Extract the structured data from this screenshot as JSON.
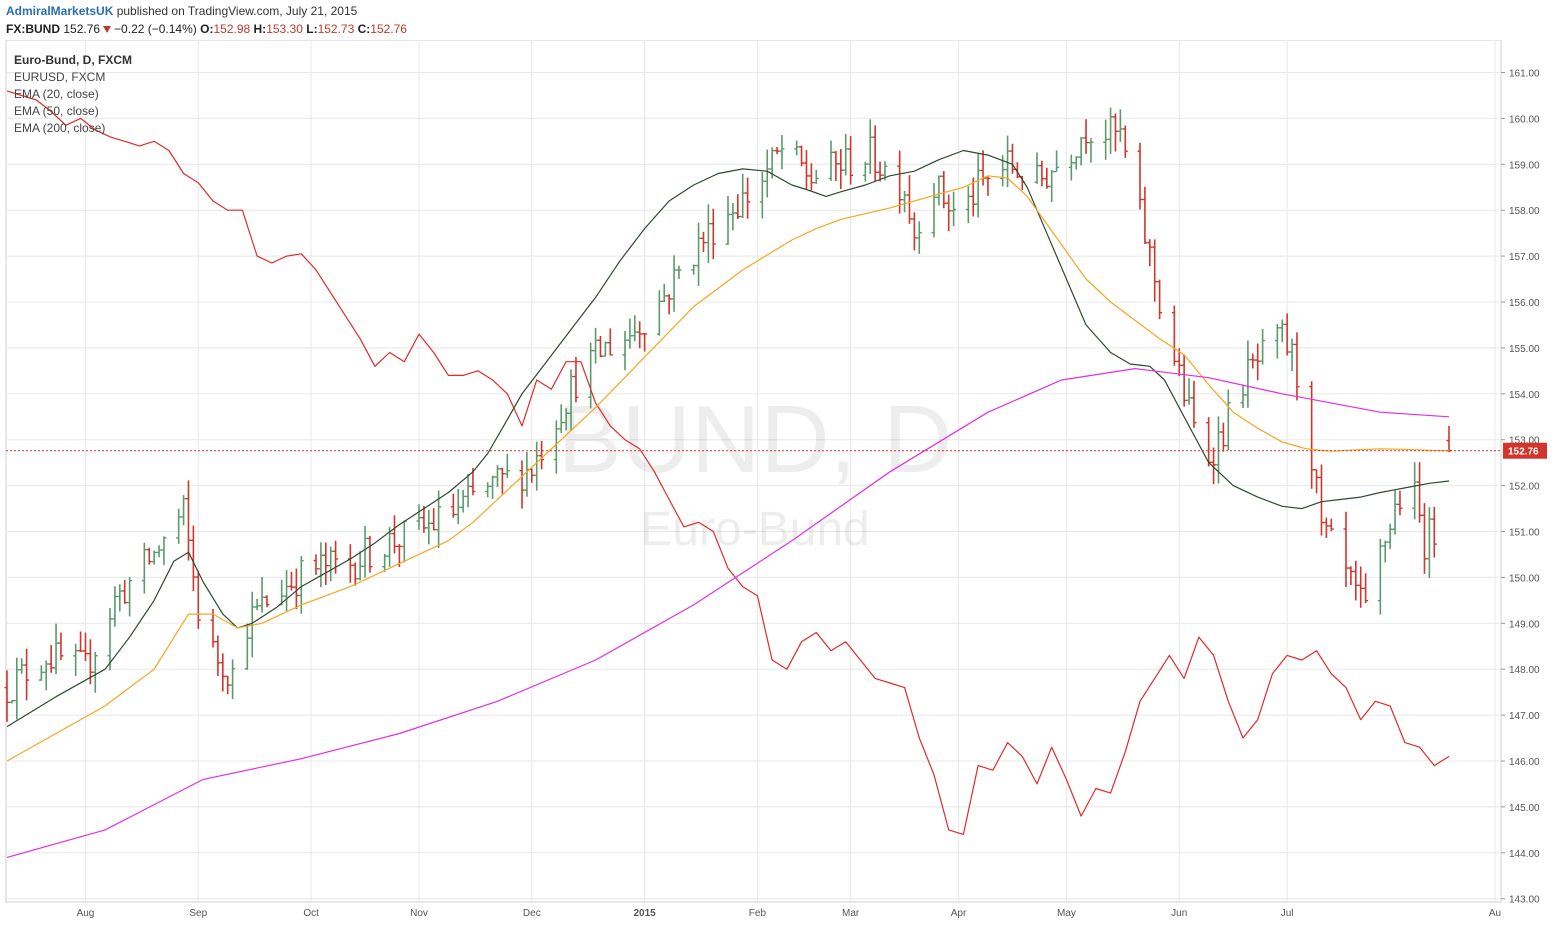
{
  "header": {
    "author": "AdmiralMarketsUK",
    "published": " published on TradingView.com, July 21, 2015",
    "symbol": "FX:BUND",
    "last": "152.76",
    "change": "−0.22 (−0.14%)",
    "o_label": "O:",
    "o_val": "152.98",
    "h_label": "H:",
    "h_val": "153.30",
    "l_label": "L:",
    "l_val": "152.73",
    "c_label": "C:",
    "c_val": "152.76"
  },
  "legend": {
    "main": "Euro-Bund, D, FXCM",
    "items": [
      "EURUSD, FXCM",
      "EMA (20, close)",
      "EMA (50, close)",
      "EMA (200, close)"
    ]
  },
  "watermark": {
    "line1": "BUND, D",
    "line2": "Euro-Bund"
  },
  "colors": {
    "up": "#5a9a6b",
    "down": "#d2352b",
    "eurusd": "#e02b2b",
    "ema20": "#2d4a2d",
    "ema50": "#f5a623",
    "ema200": "#e22ee0",
    "price_tag": "#d2352b",
    "grid": "#e8e8e8"
  },
  "chart_data": {
    "type": "line",
    "instrument": "Euro-Bund, D, FXCM",
    "y_axis": {
      "side": "right",
      "ticks": [
        143,
        144,
        145,
        146,
        147,
        148,
        149,
        150,
        151,
        152,
        153,
        154,
        155,
        156,
        157,
        158,
        159,
        160,
        161
      ],
      "ylim": [
        142.8,
        161.6
      ]
    },
    "x_axis": {
      "labels": [
        "Aug",
        "Sep",
        "Oct",
        "Nov",
        "Dec",
        "2015",
        "Feb",
        "Mar",
        "Apr",
        "May",
        "Jun",
        "Jul",
        "Au"
      ]
    },
    "last_price": 152.76,
    "series": [
      {
        "name": "EURUSD, FXCM",
        "values": [
          [
            0,
            160.6
          ],
          [
            3,
            160.5
          ],
          [
            6,
            160.4
          ],
          [
            9,
            160.15
          ],
          [
            12,
            159.85
          ],
          [
            15,
            160.0
          ],
          [
            18,
            159.75
          ],
          [
            21,
            159.6
          ],
          [
            24,
            159.5
          ],
          [
            27,
            159.4
          ],
          [
            30,
            159.5
          ],
          [
            33,
            159.3
          ],
          [
            36,
            158.8
          ],
          [
            39,
            158.6
          ],
          [
            42,
            158.2
          ],
          [
            45,
            158.0
          ],
          [
            48,
            158.0
          ],
          [
            51,
            157.0
          ],
          [
            54,
            156.85
          ],
          [
            57,
            157.0
          ],
          [
            60,
            157.05
          ],
          [
            63,
            156.7
          ],
          [
            66,
            156.2
          ],
          [
            69,
            155.7
          ],
          [
            72,
            155.2
          ],
          [
            75,
            154.6
          ],
          [
            78,
            154.9
          ],
          [
            81,
            154.7
          ],
          [
            84,
            155.3
          ],
          [
            87,
            154.9
          ],
          [
            90,
            154.4
          ],
          [
            93,
            154.4
          ],
          [
            96,
            154.5
          ],
          [
            99,
            154.3
          ],
          [
            102,
            154.0
          ],
          [
            105,
            153.3
          ],
          [
            108,
            154.3
          ],
          [
            111,
            154.1
          ],
          [
            114,
            154.7
          ],
          [
            117,
            154.7
          ],
          [
            120,
            153.8
          ],
          [
            123,
            153.3
          ],
          [
            126,
            153.0
          ],
          [
            129,
            152.8
          ],
          [
            132,
            152.3
          ],
          [
            135,
            151.7
          ],
          [
            138,
            151.1
          ],
          [
            141,
            151.2
          ],
          [
            144,
            151.0
          ],
          [
            147,
            150.2
          ],
          [
            150,
            149.8
          ],
          [
            153,
            149.6
          ],
          [
            156,
            148.2
          ],
          [
            159,
            148.0
          ],
          [
            162,
            148.6
          ],
          [
            165,
            148.8
          ],
          [
            168,
            148.4
          ],
          [
            171,
            148.6
          ],
          [
            174,
            148.2
          ],
          [
            177,
            147.8
          ],
          [
            180,
            147.7
          ],
          [
            183,
            147.6
          ],
          [
            186,
            146.5
          ],
          [
            189,
            145.7
          ],
          [
            192,
            144.5
          ],
          [
            195,
            144.4
          ],
          [
            198,
            145.9
          ],
          [
            201,
            145.8
          ],
          [
            204,
            146.4
          ],
          [
            207,
            146.1
          ],
          [
            210,
            145.5
          ],
          [
            213,
            146.3
          ],
          [
            216,
            145.6
          ],
          [
            219,
            144.8
          ],
          [
            222,
            145.4
          ],
          [
            225,
            145.3
          ],
          [
            228,
            146.2
          ],
          [
            231,
            147.3
          ],
          [
            234,
            147.8
          ],
          [
            237,
            148.3
          ],
          [
            240,
            147.8
          ],
          [
            243,
            148.7
          ],
          [
            246,
            148.3
          ],
          [
            249,
            147.3
          ],
          [
            252,
            146.5
          ],
          [
            255,
            146.9
          ],
          [
            258,
            147.9
          ],
          [
            261,
            148.3
          ],
          [
            264,
            148.2
          ],
          [
            267,
            148.4
          ],
          [
            270,
            147.9
          ],
          [
            273,
            147.6
          ],
          [
            276,
            146.9
          ],
          [
            279,
            147.3
          ],
          [
            282,
            147.2
          ],
          [
            285,
            146.4
          ],
          [
            288,
            146.3
          ],
          [
            291,
            145.9
          ],
          [
            294,
            146.1
          ]
        ]
      },
      {
        "name": "EMA (20, close)",
        "values": [
          [
            0,
            146.75
          ],
          [
            10,
            147.4
          ],
          [
            20,
            148.0
          ],
          [
            25,
            148.7
          ],
          [
            30,
            149.5
          ],
          [
            34,
            150.35
          ],
          [
            37,
            150.55
          ],
          [
            40,
            149.9
          ],
          [
            44,
            149.2
          ],
          [
            47,
            148.9
          ],
          [
            50,
            149.0
          ],
          [
            55,
            149.35
          ],
          [
            60,
            149.8
          ],
          [
            65,
            150.1
          ],
          [
            70,
            150.4
          ],
          [
            75,
            150.75
          ],
          [
            80,
            151.15
          ],
          [
            85,
            151.5
          ],
          [
            90,
            151.85
          ],
          [
            95,
            152.3
          ],
          [
            98,
            152.7
          ],
          [
            101,
            153.25
          ],
          [
            105,
            154.0
          ],
          [
            110,
            154.7
          ],
          [
            115,
            155.4
          ],
          [
            120,
            156.1
          ],
          [
            125,
            156.9
          ],
          [
            130,
            157.6
          ],
          [
            135,
            158.2
          ],
          [
            140,
            158.55
          ],
          [
            145,
            158.8
          ],
          [
            150,
            158.9
          ],
          [
            155,
            158.85
          ],
          [
            160,
            158.55
          ],
          [
            163,
            158.45
          ],
          [
            167,
            158.3
          ],
          [
            170,
            158.4
          ],
          [
            175,
            158.55
          ],
          [
            180,
            158.75
          ],
          [
            185,
            158.85
          ],
          [
            190,
            159.1
          ],
          [
            195,
            159.3
          ],
          [
            200,
            159.2
          ],
          [
            205,
            159.0
          ],
          [
            208,
            158.5
          ],
          [
            212,
            157.5
          ],
          [
            216,
            156.5
          ],
          [
            220,
            155.5
          ],
          [
            225,
            154.9
          ],
          [
            229,
            154.65
          ],
          [
            233,
            154.6
          ],
          [
            236,
            154.3
          ],
          [
            240,
            153.5
          ],
          [
            245,
            152.5
          ],
          [
            250,
            152.0
          ],
          [
            255,
            151.75
          ],
          [
            260,
            151.55
          ],
          [
            264,
            151.5
          ],
          [
            268,
            151.65
          ],
          [
            272,
            151.7
          ],
          [
            276,
            151.75
          ],
          [
            280,
            151.85
          ],
          [
            285,
            151.95
          ],
          [
            290,
            152.05
          ],
          [
            294,
            152.1
          ]
        ]
      },
      {
        "name": "EMA (50, close)",
        "values": [
          [
            0,
            146.0
          ],
          [
            10,
            146.6
          ],
          [
            20,
            147.2
          ],
          [
            30,
            148.0
          ],
          [
            37,
            149.2
          ],
          [
            42,
            149.2
          ],
          [
            47,
            148.9
          ],
          [
            52,
            149.0
          ],
          [
            60,
            149.4
          ],
          [
            70,
            149.8
          ],
          [
            80,
            150.3
          ],
          [
            90,
            150.8
          ],
          [
            95,
            151.2
          ],
          [
            100,
            151.7
          ],
          [
            110,
            152.7
          ],
          [
            120,
            153.7
          ],
          [
            130,
            154.8
          ],
          [
            140,
            155.9
          ],
          [
            150,
            156.7
          ],
          [
            160,
            157.35
          ],
          [
            165,
            157.6
          ],
          [
            170,
            157.8
          ],
          [
            180,
            158.05
          ],
          [
            190,
            158.35
          ],
          [
            195,
            158.5
          ],
          [
            200,
            158.75
          ],
          [
            204,
            158.7
          ],
          [
            208,
            158.3
          ],
          [
            212,
            157.7
          ],
          [
            216,
            157.1
          ],
          [
            220,
            156.5
          ],
          [
            225,
            156.0
          ],
          [
            230,
            155.6
          ],
          [
            235,
            155.2
          ],
          [
            240,
            154.85
          ],
          [
            245,
            154.2
          ],
          [
            250,
            153.6
          ],
          [
            255,
            153.25
          ],
          [
            260,
            152.95
          ],
          [
            265,
            152.8
          ],
          [
            270,
            152.75
          ],
          [
            275,
            152.78
          ],
          [
            280,
            152.8
          ],
          [
            285,
            152.79
          ],
          [
            290,
            152.77
          ],
          [
            294,
            152.76
          ]
        ]
      },
      {
        "name": "EMA (200, close)",
        "values": [
          [
            0,
            143.9
          ],
          [
            20,
            144.5
          ],
          [
            40,
            145.6
          ],
          [
            60,
            146.05
          ],
          [
            80,
            146.6
          ],
          [
            100,
            147.3
          ],
          [
            120,
            148.2
          ],
          [
            140,
            149.4
          ],
          [
            160,
            150.8
          ],
          [
            180,
            152.3
          ],
          [
            200,
            153.6
          ],
          [
            215,
            154.3
          ],
          [
            230,
            154.55
          ],
          [
            245,
            154.35
          ],
          [
            260,
            154.0
          ],
          [
            280,
            153.6
          ],
          [
            294,
            153.5
          ]
        ]
      }
    ]
  }
}
